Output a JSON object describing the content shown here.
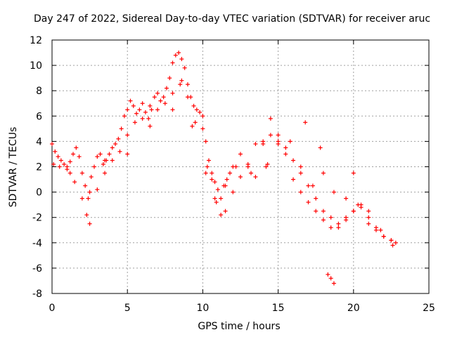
{
  "chart_data": {
    "type": "scatter",
    "title": "Day 247 of 2022, Sidereal Day-to-day VTEC variation (SDTVAR) for receiver aruc",
    "xlabel": "GPS time / hours",
    "ylabel": "SDTVAR / TECUs",
    "xlim": [
      0,
      25
    ],
    "ylim": [
      -8,
      12
    ],
    "xticks": [
      0,
      5,
      10,
      15,
      20,
      25
    ],
    "yticks": [
      -8,
      -6,
      -4,
      -2,
      0,
      2,
      4,
      6,
      8,
      10,
      12
    ],
    "grid": true,
    "marker": "+",
    "color": "#ff0000",
    "series": [
      {
        "name": "SDTVAR",
        "x": [
          0.0,
          0.2,
          0.4,
          0.6,
          0.8,
          1.0,
          1.2,
          1.4,
          1.6,
          1.8,
          2.0,
          2.2,
          2.4,
          2.6,
          2.8,
          3.0,
          3.2,
          3.4,
          3.6,
          3.8,
          4.0,
          4.2,
          4.4,
          4.6,
          4.8,
          5.0,
          5.2,
          5.4,
          5.6,
          5.8,
          6.0,
          6.2,
          6.4,
          6.6,
          6.8,
          7.0,
          7.2,
          7.4,
          7.6,
          7.8,
          8.0,
          8.2,
          8.4,
          8.6,
          8.8,
          9.0,
          9.2,
          9.4,
          9.6,
          9.8,
          10.0,
          10.2,
          10.4,
          10.6,
          10.8,
          11.0,
          11.2,
          11.4,
          11.6,
          11.8,
          12.0,
          12.5,
          13.0,
          13.5,
          14.0,
          14.5,
          15.0,
          15.5,
          16.0,
          16.5,
          17.0,
          17.5,
          18.0,
          18.5,
          19.0,
          19.5,
          20.0,
          20.5,
          21.0,
          21.5,
          22.0,
          22.5,
          22.8,
          0.1,
          0.5,
          1.0,
          1.5,
          2.0,
          2.3,
          2.5,
          3.0,
          3.5,
          4.0,
          4.5,
          5.0,
          5.5,
          6.0,
          6.5,
          7.0,
          7.5,
          8.0,
          8.5,
          9.0,
          9.5,
          10.0,
          10.3,
          10.6,
          10.9,
          11.2,
          11.5,
          12.0,
          12.5,
          13.0,
          13.5,
          14.0,
          14.5,
          15.0,
          15.5,
          16.0,
          16.5,
          17.0,
          17.5,
          18.0,
          18.5,
          19.0,
          19.5,
          20.0,
          20.5,
          21.0,
          21.5,
          22.0,
          22.5,
          1.2,
          2.5,
          3.5,
          5.0,
          6.5,
          8.0,
          8.6,
          9.3,
          10.2,
          10.8,
          11.5,
          12.2,
          13.2,
          14.3,
          15.0,
          15.8,
          16.5,
          17.3,
          18.0,
          18.7,
          19.5,
          20.3,
          21.0,
          21.8,
          22.6,
          14.2,
          16.8,
          17.8,
          20.0,
          18.3,
          18.5,
          18.7
        ],
        "y": [
          3.8,
          3.2,
          2.8,
          2.5,
          2.2,
          2.0,
          2.4,
          3.0,
          3.5,
          2.8,
          1.5,
          0.5,
          -0.5,
          1.2,
          2.0,
          2.8,
          3.0,
          2.2,
          2.5,
          3.0,
          3.5,
          3.8,
          4.2,
          5.0,
          6.0,
          6.5,
          7.2,
          6.8,
          6.2,
          6.5,
          7.0,
          6.3,
          5.8,
          6.5,
          7.5,
          7.8,
          7.2,
          7.5,
          8.2,
          9.0,
          10.2,
          10.8,
          11.0,
          10.5,
          9.8,
          8.5,
          7.5,
          6.8,
          6.5,
          6.3,
          6.0,
          4.0,
          2.5,
          1.5,
          0.8,
          0.2,
          -0.5,
          0.5,
          1.0,
          1.5,
          2.0,
          3.0,
          2.0,
          1.2,
          4.0,
          5.8,
          4.5,
          3.5,
          2.5,
          1.5,
          0.5,
          -0.5,
          -1.5,
          -2.0,
          -2.8,
          -2.2,
          -1.5,
          -1.0,
          -2.5,
          -3.0,
          -3.5,
          -3.8,
          -4.0,
          2.2,
          2.0,
          1.8,
          0.8,
          -0.5,
          -1.8,
          -2.5,
          0.2,
          1.5,
          2.5,
          3.2,
          4.5,
          5.5,
          5.8,
          5.2,
          6.5,
          7.0,
          7.8,
          8.5,
          7.5,
          5.5,
          5.0,
          2.0,
          1.0,
          -0.8,
          -1.8,
          -1.5,
          0.0,
          1.2,
          2.2,
          3.8,
          3.8,
          4.5,
          4.0,
          3.0,
          1.0,
          0.0,
          -0.8,
          -1.5,
          -2.2,
          -2.8,
          -2.5,
          -2.0,
          -1.5,
          -1.2,
          -1.5,
          -2.8,
          -3.5,
          -3.8,
          1.5,
          0.0,
          2.5,
          3.0,
          6.8,
          6.5,
          8.8,
          5.2,
          1.5,
          -0.5,
          0.5,
          2.0,
          1.5,
          2.2,
          3.8,
          4.0,
          2.0,
          0.5,
          1.5,
          0.0,
          -0.5,
          -1.0,
          -2.0,
          -3.0,
          -4.2,
          2.0,
          5.5,
          3.5,
          1.5,
          -6.5,
          -6.8,
          -7.2
        ]
      }
    ]
  }
}
